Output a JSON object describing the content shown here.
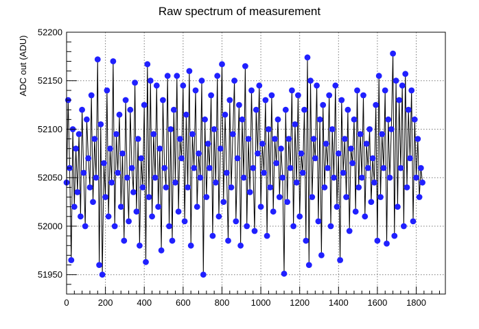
{
  "chart_data": {
    "type": "scatter",
    "title": "Raw spectrum of measurement",
    "xlabel": "",
    "ylabel": "ADC out (ADU)",
    "xlim": [
      0,
      1950
    ],
    "ylim": [
      51930,
      52200
    ],
    "grid": true,
    "legend": "none",
    "connect_points": true,
    "x_ticks": [
      "0",
      "200",
      "400",
      "600",
      "800",
      "1000",
      "1200",
      "1400",
      "1600",
      "1800"
    ],
    "y_ticks": [
      "51950",
      "52000",
      "52050",
      "52100",
      "52150",
      "52200"
    ],
    "colors": {
      "marker": "#2020ff",
      "line": "#000000",
      "grid": "#777777"
    },
    "x_start": 0,
    "x_step": 8,
    "series": [
      {
        "values": [
          52045,
          52130,
          52060,
          51965,
          52100,
          52020,
          52080,
          52035,
          52095,
          52010,
          52120,
          52055,
          52000,
          52110,
          52070,
          52040,
          52135,
          52025,
          52090,
          52050,
          52172,
          51960,
          52105,
          51950,
          52065,
          52030,
          52140,
          52010,
          52080,
          52045,
          52170,
          52000,
          52095,
          52055,
          52115,
          52020,
          52075,
          51985,
          52130,
          52050,
          52005,
          52120,
          52060,
          52035,
          52148,
          52015,
          52090,
          51980,
          52070,
          52040,
          52125,
          51963,
          52167,
          52030,
          52150,
          52010,
          52095,
          52050,
          52145,
          52020,
          52080,
          51975,
          52130,
          52060,
          52040,
          52155,
          52000,
          52100,
          51985,
          52120,
          52045,
          52155,
          52015,
          52090,
          52070,
          52145,
          52005,
          52115,
          52040,
          52160,
          51980,
          52095,
          52060,
          52140,
          52020,
          52075,
          52050,
          52150,
          51950,
          52110,
          52030,
          52085,
          52060,
          52135,
          51990,
          52100,
          52045,
          52155,
          52010,
          52080,
          52167,
          52025,
          52115,
          52055,
          51985,
          52130,
          52040,
          52095,
          52150,
          52005,
          52070,
          52125,
          51980,
          52110,
          52050,
          52165,
          52000,
          52090,
          52035,
          52140,
          52060,
          51995,
          52120,
          52075,
          52145,
          52020,
          52085,
          52055,
          52130,
          51990,
          52100,
          52040,
          52135,
          52015,
          52090,
          52065,
          52110,
          52030,
          52080,
          52050,
          51951,
          52120,
          52025,
          52090,
          52060,
          52140,
          52000,
          52105,
          52045,
          52135,
          52010,
          52075,
          52055,
          52120,
          51985,
          52174,
          51960,
          52150,
          52030,
          52090,
          52070,
          52145,
          52005,
          52110,
          51970,
          52125,
          52040,
          52085,
          52060,
          52135,
          52000,
          52100,
          52050,
          52145,
          52020,
          52075,
          51965,
          52130,
          52055,
          52090,
          52030,
          52120,
          51995,
          52080,
          52065,
          52110,
          52015,
          52140,
          52040,
          52095,
          52050,
          52135,
          52010,
          52085,
          52060,
          52100,
          52025,
          52070,
          52045,
          52125,
          51985,
          52155,
          52030,
          52095,
          52060,
          52140,
          51982,
          52110,
          52050,
          52100,
          52178,
          51990,
          52150,
          52020,
          52130,
          52060,
          52145,
          52000,
          52157,
          52040,
          52120,
          52070,
          52140,
          52005,
          52110,
          52050,
          52090,
          52030,
          52060,
          52045
        ]
      }
    ]
  }
}
